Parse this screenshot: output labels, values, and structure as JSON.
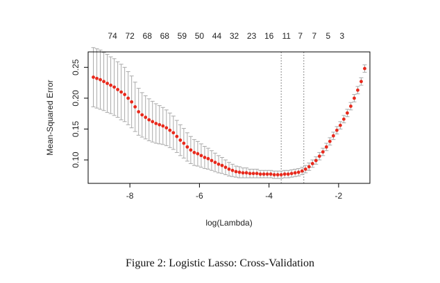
{
  "chart_data": {
    "type": "scatter",
    "xlabel": "log(Lambda)",
    "ylabel": "Mean-Squared Error",
    "xlim": [
      -9.2,
      -1.1
    ],
    "ylim": [
      0.062,
      0.275
    ],
    "x_ticks": [
      -8,
      -6,
      -4,
      -2
    ],
    "y_ticks": [
      0.1,
      0.15,
      0.2,
      0.25
    ],
    "x_tick_labels": [
      "-8",
      "-6",
      "-4",
      "-2"
    ],
    "y_tick_labels": [
      "0.10",
      "0.15",
      "0.20",
      "0.25"
    ],
    "top_axis": {
      "x": [
        -8.5,
        -8.0,
        -7.5,
        -7.0,
        -6.5,
        -6.0,
        -5.5,
        -5.0,
        -4.5,
        -4.0,
        -3.5,
        -3.1,
        -2.7,
        -2.3,
        -1.9
      ],
      "labels": [
        "74",
        "72",
        "68",
        "68",
        "59",
        "50",
        "44",
        "32",
        "23",
        "16",
        "11",
        "7",
        "7",
        "5",
        "3"
      ]
    },
    "reference_lines_x": [
      -3.65,
      -3.0
    ],
    "point_color": "#e8291c",
    "errorbar_color": "#a9a9a9",
    "reference_line_color": "#888888",
    "series": [
      {
        "x": [
          -9.05,
          -8.95,
          -8.85,
          -8.75,
          -8.65,
          -8.55,
          -8.45,
          -8.35,
          -8.25,
          -8.15,
          -8.05,
          -7.95,
          -7.85,
          -7.75,
          -7.65,
          -7.55,
          -7.45,
          -7.35,
          -7.25,
          -7.15,
          -7.05,
          -6.95,
          -6.85,
          -6.75,
          -6.65,
          -6.55,
          -6.45,
          -6.35,
          -6.25,
          -6.15,
          -6.05,
          -5.95,
          -5.85,
          -5.75,
          -5.65,
          -5.55,
          -5.45,
          -5.35,
          -5.25,
          -5.15,
          -5.05,
          -4.95,
          -4.85,
          -4.75,
          -4.65,
          -4.55,
          -4.45,
          -4.35,
          -4.25,
          -4.15,
          -4.05,
          -3.95,
          -3.85,
          -3.75,
          -3.65,
          -3.55,
          -3.45,
          -3.35,
          -3.25,
          -3.15,
          -3.05,
          -2.95,
          -2.85,
          -2.75,
          -2.65,
          -2.55,
          -2.45,
          -2.35,
          -2.25,
          -2.15,
          -2.05,
          -1.95,
          -1.85,
          -1.75,
          -1.65,
          -1.55,
          -1.45,
          -1.35,
          -1.25
        ],
        "y": [
          0.234,
          0.232,
          0.23,
          0.227,
          0.224,
          0.221,
          0.218,
          0.214,
          0.21,
          0.206,
          0.2,
          0.194,
          0.186,
          0.178,
          0.173,
          0.169,
          0.165,
          0.162,
          0.159,
          0.157,
          0.155,
          0.152,
          0.148,
          0.144,
          0.138,
          0.132,
          0.127,
          0.121,
          0.116,
          0.112,
          0.11,
          0.107,
          0.104,
          0.102,
          0.099,
          0.096,
          0.093,
          0.091,
          0.088,
          0.085,
          0.083,
          0.081,
          0.08,
          0.079,
          0.079,
          0.078,
          0.078,
          0.078,
          0.077,
          0.077,
          0.077,
          0.077,
          0.076,
          0.076,
          0.076,
          0.077,
          0.077,
          0.078,
          0.079,
          0.08,
          0.082,
          0.085,
          0.089,
          0.094,
          0.099,
          0.106,
          0.113,
          0.121,
          0.13,
          0.139,
          0.148,
          0.156,
          0.166,
          0.176,
          0.187,
          0.2,
          0.213,
          0.227,
          0.248
        ],
        "error": [
          0.048,
          0.048,
          0.048,
          0.047,
          0.047,
          0.046,
          0.046,
          0.045,
          0.045,
          0.044,
          0.043,
          0.042,
          0.04,
          0.038,
          0.036,
          0.035,
          0.034,
          0.033,
          0.032,
          0.031,
          0.03,
          0.029,
          0.028,
          0.027,
          0.026,
          0.025,
          0.024,
          0.023,
          0.022,
          0.021,
          0.02,
          0.019,
          0.018,
          0.017,
          0.016,
          0.015,
          0.014,
          0.013,
          0.012,
          0.011,
          0.01,
          0.009,
          0.009,
          0.008,
          0.008,
          0.007,
          0.007,
          0.007,
          0.006,
          0.006,
          0.006,
          0.006,
          0.006,
          0.006,
          0.006,
          0.006,
          0.006,
          0.006,
          0.006,
          0.006,
          0.006,
          0.006,
          0.006,
          0.006,
          0.006,
          0.006,
          0.006,
          0.006,
          0.006,
          0.006,
          0.006,
          0.006,
          0.006,
          0.006,
          0.006,
          0.006,
          0.006,
          0.006,
          0.006
        ]
      }
    ]
  },
  "caption": "Figure 2: Logistic Lasso: Cross-Validation"
}
